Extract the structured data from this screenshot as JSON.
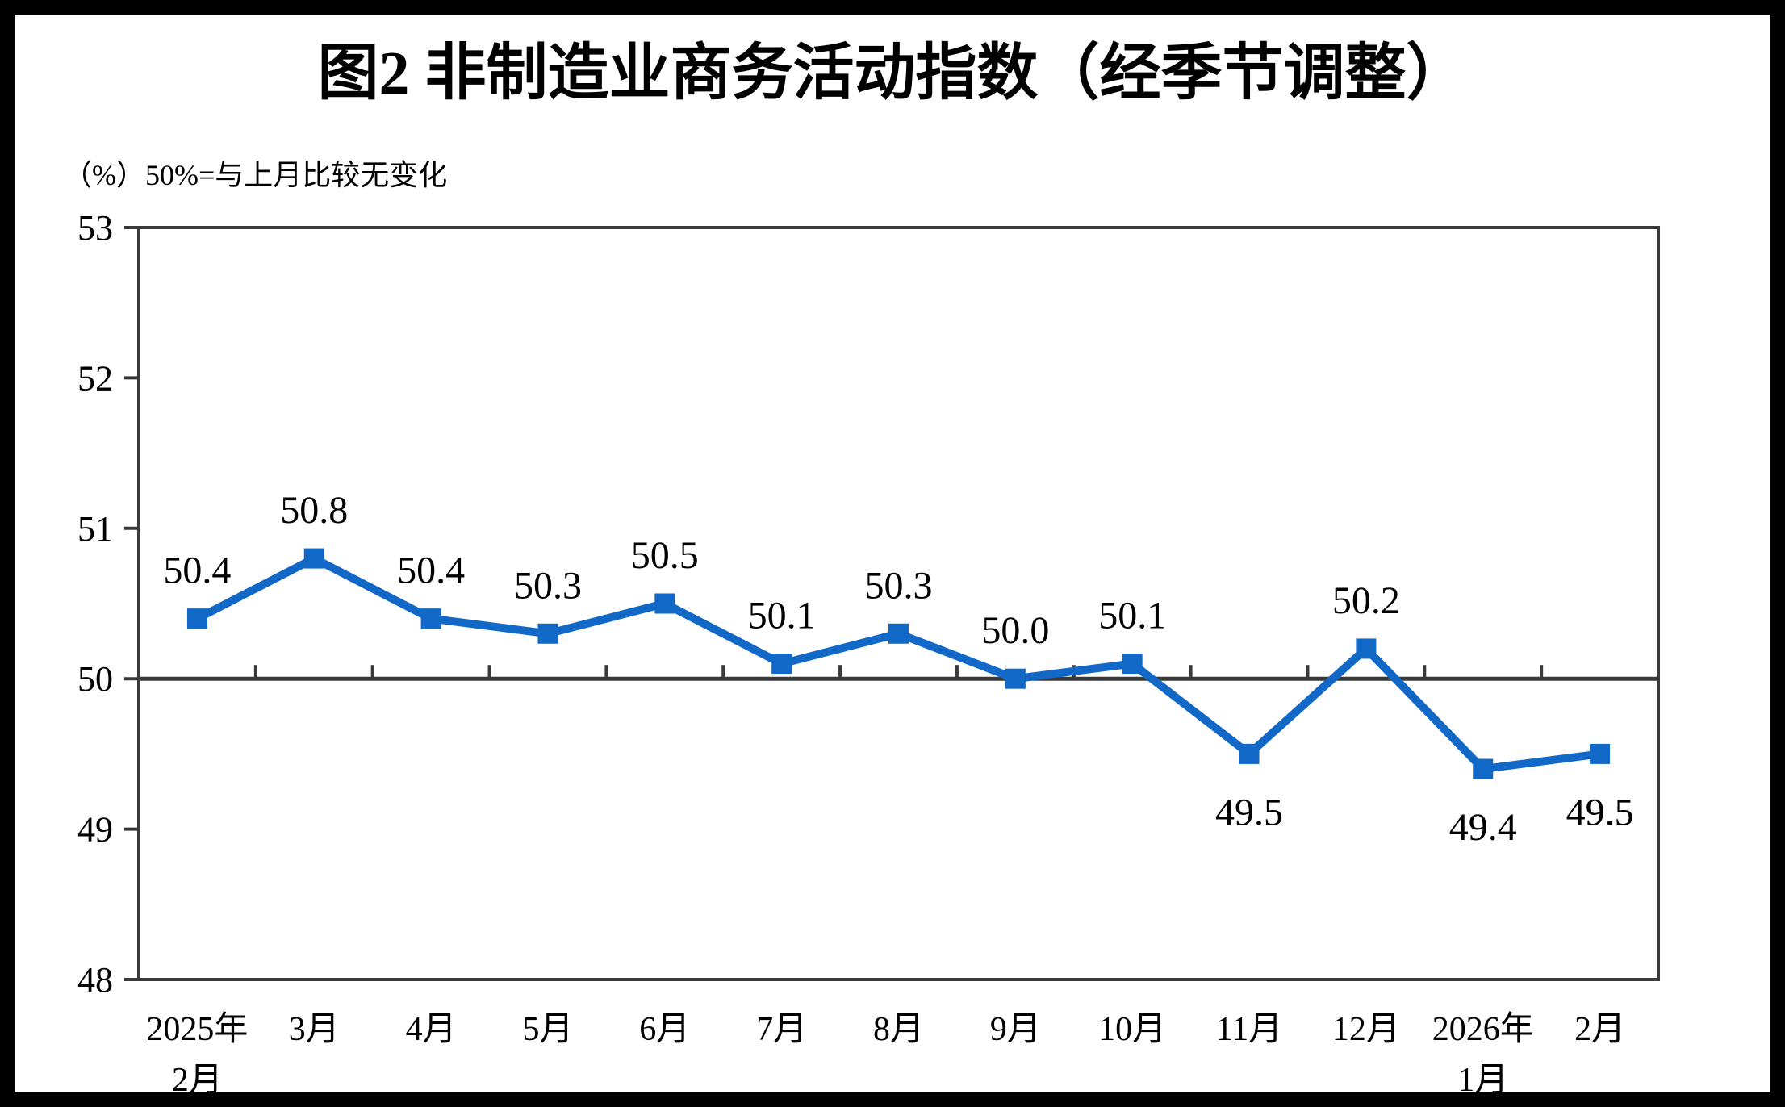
{
  "page": {
    "background_color": "#ffffff",
    "frame_color": "#000000"
  },
  "chart": {
    "title": "图2  非制造业商务活动指数（经季节调整）",
    "unit_note": "（%）50%=与上月比较无变化"
  },
  "chart_data": {
    "type": "line",
    "title": "图2 非制造业商务活动指数（经季节调整）",
    "ylabel_note": "（%）50%=与上月比较无变化",
    "categories": [
      [
        "2025年",
        "2月"
      ],
      [
        "3月"
      ],
      [
        "4月"
      ],
      [
        "5月"
      ],
      [
        "6月"
      ],
      [
        "7月"
      ],
      [
        "8月"
      ],
      [
        "9月"
      ],
      [
        "10月"
      ],
      [
        "11月"
      ],
      [
        "12月"
      ],
      [
        "2026年",
        "1月"
      ],
      [
        "2月"
      ]
    ],
    "series": [
      {
        "name": "非制造业商务活动指数（经季节调整）",
        "values": [
          50.4,
          50.8,
          50.4,
          50.3,
          50.5,
          50.1,
          50.3,
          50.0,
          50.1,
          49.5,
          50.2,
          49.4,
          49.5
        ],
        "data_labels": [
          "50.4",
          "50.8",
          "50.4",
          "50.3",
          "50.5",
          "50.1",
          "50.3",
          "50.0",
          "50.1",
          "49.5",
          "50.2",
          "49.4",
          "49.5"
        ],
        "color": "#1268c6",
        "marker": "square"
      }
    ],
    "ylim": [
      48,
      53
    ],
    "yticks": [
      48,
      49,
      50,
      51,
      52,
      53
    ],
    "reference_line": 50,
    "axis_color": "#3a3a3a",
    "grid": "reference-line-only",
    "legend_position": "none"
  }
}
